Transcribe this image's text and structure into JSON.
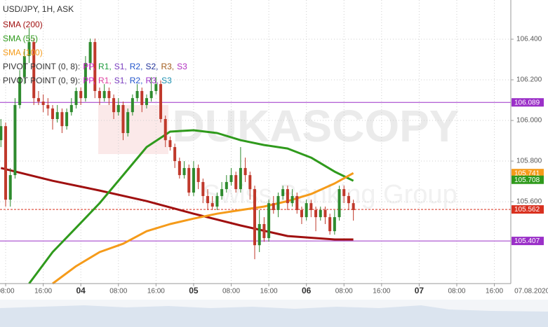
{
  "chart_data": {
    "type": "candlestick",
    "title": "USD/JPY, 1H, ASK",
    "watermark": "DUKASCOPY",
    "watermark_subtitle": "Swiss Banking Group",
    "up_color": "#2e8b2e",
    "down_color": "#c0392b",
    "xlim": [
      -1.2,
      107.5
    ],
    "ylim": [
      105.197,
      106.593
    ],
    "grid": true,
    "xticks": [
      {
        "value": 0,
        "label": "08:00"
      },
      {
        "value": 8,
        "label": "16:00"
      },
      {
        "value": 16,
        "label": "04"
      },
      {
        "value": 24,
        "label": "08:00"
      },
      {
        "value": 32,
        "label": "16:00"
      },
      {
        "value": 40,
        "label": "05"
      },
      {
        "value": 48,
        "label": "08:00"
      },
      {
        "value": 56,
        "label": "16:00"
      },
      {
        "value": 64,
        "label": "06"
      },
      {
        "value": 72,
        "label": "08:00"
      },
      {
        "value": 80,
        "label": "16:00"
      },
      {
        "value": 88,
        "label": "07"
      },
      {
        "value": 96,
        "label": "08:00"
      },
      {
        "value": 104,
        "label": "16:00"
      },
      {
        "value": 112,
        "label": "07.08.2020"
      }
    ],
    "yticks": [
      {
        "value": 106.4,
        "label": "106.400"
      },
      {
        "value": 106.2,
        "label": "106.200"
      },
      {
        "value": 106.0,
        "label": "106.000"
      },
      {
        "value": 105.8,
        "label": "105.800"
      },
      {
        "value": 105.6,
        "label": "105.600"
      }
    ],
    "candles": {
      "x": [
        -1,
        0,
        1,
        2,
        3,
        4,
        5,
        6,
        7,
        8,
        9,
        10,
        11,
        12,
        13,
        14,
        15,
        16,
        17,
        18,
        19,
        20,
        21,
        22,
        23,
        24,
        25,
        26,
        27,
        28,
        29,
        30,
        31,
        32,
        33,
        34,
        35,
        36,
        37,
        38,
        39,
        40,
        41,
        42,
        43,
        44,
        45,
        46,
        47,
        48,
        49,
        50,
        51,
        52,
        53,
        54,
        55,
        56,
        57,
        58,
        59,
        60,
        61,
        62,
        63,
        64,
        65,
        66,
        67,
        68,
        69,
        70,
        71,
        72,
        73,
        74
      ],
      "open": [
        105.903,
        105.972,
        105.61,
        105.731,
        106.076,
        106.214,
        106.317,
        106.386,
        106.11,
        106.093,
        106.076,
        106.059,
        106.007,
        106.041,
        105.972,
        106.041,
        106.076,
        106.145,
        106.11,
        106.283,
        106.386,
        106.145,
        106.11,
        106.145,
        106.11,
        106.041,
        106.076,
        105.938,
        106.041,
        106.11,
        106.145,
        106.076,
        106.11,
        106.145,
        106.179,
        106.007,
        105.903,
        105.869,
        105.8,
        105.731,
        105.766,
        105.645,
        105.766,
        105.697,
        105.628,
        105.593,
        105.576,
        105.628,
        105.662,
        105.697,
        105.731,
        105.662,
        105.766,
        105.731,
        105.662,
        105.386,
        105.49,
        105.421,
        105.593,
        105.559,
        105.628,
        105.662,
        105.593,
        105.628,
        105.559,
        105.524,
        105.593,
        105.559,
        105.524,
        105.559,
        105.524,
        105.455,
        105.524,
        105.662,
        105.628,
        105.593
      ],
      "high": [
        106.007,
        105.99,
        105.766,
        106.11,
        106.248,
        106.352,
        106.455,
        106.403,
        106.145,
        106.128,
        106.11,
        106.076,
        106.076,
        106.059,
        106.059,
        106.11,
        106.162,
        106.162,
        106.317,
        106.403,
        106.403,
        106.162,
        106.179,
        106.162,
        106.128,
        106.11,
        106.093,
        106.059,
        106.128,
        106.179,
        106.162,
        106.128,
        106.214,
        106.214,
        106.197,
        106.024,
        105.921,
        105.886,
        105.817,
        105.8,
        105.783,
        105.8,
        105.783,
        105.714,
        105.662,
        105.628,
        105.645,
        105.697,
        105.731,
        105.766,
        105.748,
        105.869,
        105.817,
        105.748,
        105.679,
        105.559,
        105.524,
        105.61,
        105.628,
        105.645,
        105.679,
        105.679,
        105.662,
        105.645,
        105.576,
        105.61,
        105.61,
        105.576,
        105.576,
        105.576,
        105.541,
        105.559,
        105.679,
        105.679,
        105.645,
        105.61
      ],
      "low": [
        105.869,
        105.576,
        105.576,
        105.714,
        106.059,
        106.179,
        106.283,
        106.076,
        106.076,
        106.041,
        106.024,
        105.955,
        105.99,
        105.938,
        105.955,
        106.024,
        106.059,
        106.076,
        106.093,
        106.248,
        106.11,
        106.076,
        106.093,
        106.076,
        106.007,
        106.024,
        105.903,
        105.921,
        106.024,
        106.093,
        106.041,
        106.059,
        106.093,
        106.128,
        105.99,
        105.869,
        105.852,
        105.766,
        105.714,
        105.714,
        105.628,
        105.628,
        105.662,
        105.593,
        105.559,
        105.559,
        105.559,
        105.61,
        105.645,
        105.679,
        105.645,
        105.645,
        105.697,
        105.61,
        105.317,
        105.352,
        105.403,
        105.403,
        105.541,
        105.524,
        105.61,
        105.559,
        105.576,
        105.541,
        105.49,
        105.507,
        105.524,
        105.455,
        105.507,
        105.49,
        105.438,
        105.438,
        105.507,
        105.593,
        105.559,
        105.507
      ],
      "close": [
        105.972,
        105.61,
        105.731,
        106.076,
        106.214,
        106.317,
        106.386,
        106.11,
        106.093,
        106.076,
        106.059,
        106.007,
        106.041,
        105.972,
        106.041,
        106.076,
        106.145,
        106.11,
        106.283,
        106.386,
        106.145,
        106.11,
        106.145,
        106.11,
        106.041,
        106.076,
        105.938,
        106.041,
        106.11,
        106.145,
        106.076,
        106.11,
        106.145,
        106.179,
        106.007,
        105.903,
        105.869,
        105.8,
        105.731,
        105.766,
        105.645,
        105.766,
        105.697,
        105.628,
        105.593,
        105.576,
        105.628,
        105.662,
        105.697,
        105.731,
        105.662,
        105.766,
        105.731,
        105.662,
        105.386,
        105.49,
        105.421,
        105.593,
        105.559,
        105.628,
        105.662,
        105.593,
        105.628,
        105.559,
        105.524,
        105.593,
        105.559,
        105.524,
        105.559,
        105.524,
        105.455,
        105.524,
        105.662,
        105.628,
        105.593,
        105.559
      ]
    },
    "series": [
      {
        "name": "SMA (200)",
        "color": "#a01010",
        "x": [
          -1,
          10,
          20,
          30,
          40,
          50,
          60,
          70,
          74
        ],
        "values": [
          105.766,
          105.703,
          105.655,
          105.603,
          105.541,
          105.483,
          105.431,
          105.414,
          105.414
        ]
      },
      {
        "name": "SMA (55)",
        "color": "#2f9a1c",
        "x": [
          5,
          10,
          15,
          20,
          25,
          30,
          35,
          40,
          45,
          50,
          55,
          60,
          65,
          70,
          74
        ],
        "values": [
          105.197,
          105.352,
          105.472,
          105.593,
          105.731,
          105.869,
          105.945,
          105.952,
          105.938,
          105.903,
          105.879,
          105.862,
          105.817,
          105.748,
          105.703
        ]
      },
      {
        "name": "SMA (100)",
        "color": "#f59b1a",
        "x": [
          10,
          15,
          20,
          25,
          30,
          35,
          40,
          45,
          50,
          55,
          60,
          65,
          70,
          74
        ],
        "values": [
          105.197,
          105.283,
          105.352,
          105.393,
          105.455,
          105.49,
          105.517,
          105.541,
          105.559,
          105.576,
          105.603,
          105.638,
          105.69,
          105.741
        ]
      }
    ],
    "pivot_legend": [
      {
        "label": "PIVOT POINT (0, 8):",
        "levels": [
          {
            "name": "PP,",
            "color": "#d61fd6"
          },
          {
            "name": "R1,",
            "color": "#1a9a3a"
          },
          {
            "name": "S1,",
            "color": "#7a3fc0"
          },
          {
            "name": "R2,",
            "color": "#2255cc"
          },
          {
            "name": "S2,",
            "color": "#223399"
          },
          {
            "name": "R3,",
            "color": "#a05a1a"
          },
          {
            "name": "S3",
            "color": "#b02fc0"
          }
        ]
      },
      {
        "label": "PIVOT POINT (0, 9):",
        "levels": [
          {
            "name": "PP,",
            "color": "#d61fd6"
          },
          {
            "name": "R1,",
            "color": "#e040a0"
          },
          {
            "name": "S1,",
            "color": "#7a3fc0"
          },
          {
            "name": "R2,",
            "color": "#2255cc"
          },
          {
            "name": "R3,",
            "color": "#9b30c8"
          },
          {
            "name": "S3",
            "color": "#1a8fb0"
          }
        ]
      }
    ],
    "markers": [
      {
        "value": 106.089,
        "color": "#9b30c8",
        "line": "solid"
      },
      {
        "value": 105.741,
        "color": "#f59b1a"
      },
      {
        "value": 105.708,
        "color": "#2f9a1c"
      },
      {
        "value": 105.562,
        "color": "#d9301f",
        "line": "dashed"
      },
      {
        "value": 105.407,
        "color": "#9b30c8",
        "line": "solid"
      }
    ]
  }
}
